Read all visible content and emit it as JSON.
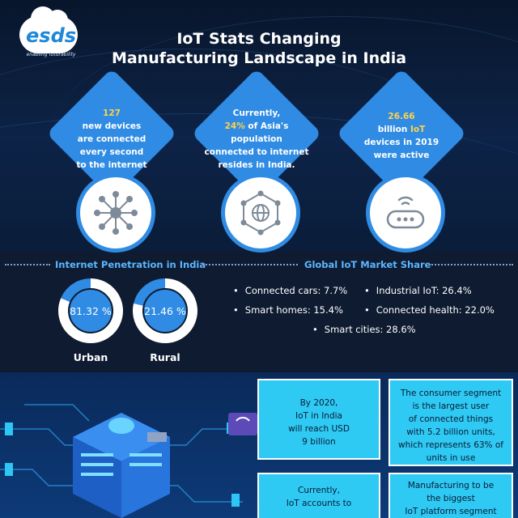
{
  "brand": {
    "name": "esds",
    "tagline": "enabling futurability"
  },
  "title": {
    "line1": "IoT Stats Changing",
    "line2": "Manufacturing Landscape in India"
  },
  "stats": [
    {
      "l1": "127",
      "l2": "new devices",
      "l3": "are connected",
      "l4": "every second",
      "l5": "to the internet",
      "icon": "network-hub-icon"
    },
    {
      "l1": "Currently,",
      "l2": "24% of Asia's",
      "l3": "population",
      "l4": "connected to internet",
      "l5": "resides in India.",
      "icon": "globe-network-icon"
    },
    {
      "l1": "26.66",
      "l2": "billion IoT",
      "l3": "devices in 2019",
      "l4": "were active",
      "icon": "router-icon"
    }
  ],
  "penetration": {
    "title": "Internet Penetration in India",
    "urban": {
      "value": "81.32 %",
      "label": "Urban",
      "fraction": 0.8132
    },
    "rural": {
      "value": "21.46 %",
      "label": "Rural",
      "fraction": 0.2146
    }
  },
  "market": {
    "title": "Global IoT Market Share",
    "items": [
      "Connected cars: 7.7%",
      "Industrial IoT: 26.4%",
      "Smart homes: 15.4%",
      "Connected health: 22.0%",
      "Smart cities: 28.6%"
    ],
    "bullet": "•"
  },
  "boxes": [
    {
      "lines": [
        "By 2020,",
        "IoT in India",
        "will reach USD",
        "9 billion"
      ]
    },
    {
      "lines": [
        "The consumer segment",
        "is the largest user",
        "of connected things",
        "with 5.2 billion units,",
        "which represents 63% of",
        "units in use"
      ]
    },
    {
      "lines": [
        "Currently,",
        "IoT accounts to"
      ]
    },
    {
      "lines": [
        "Manufacturing to be",
        "the biggest",
        "IoT platform segment"
      ]
    }
  ],
  "colors": {
    "accent": "#2f8be3",
    "highlight": "#ffd24a",
    "box": "#2ecaf4",
    "section_title": "#5cb6ff"
  }
}
